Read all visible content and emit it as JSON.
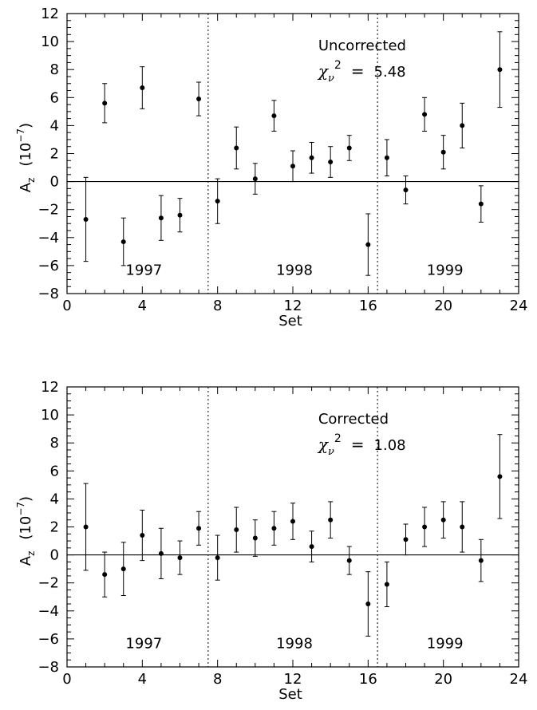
{
  "chart_data": [
    {
      "type": "scatter",
      "title": "",
      "xlabel": "Set",
      "ylabel_main": "A",
      "ylabel_sub": "z",
      "ylabel_unit_pre": "(10",
      "ylabel_unit_exp": "−7",
      "ylabel_unit_post": ")",
      "xlim": [
        0,
        24
      ],
      "ylim": [
        -8,
        12
      ],
      "xticks": [
        0,
        4,
        8,
        12,
        16,
        20,
        24
      ],
      "yticks": [
        -8,
        -6,
        -4,
        -2,
        0,
        2,
        4,
        6,
        8,
        10,
        12
      ],
      "ytick_labels": [
        "−8",
        "−6",
        "−4",
        "−2",
        "0",
        "2",
        "4",
        "6",
        "8",
        "10",
        "12"
      ],
      "vlines": [
        7.5,
        16.5
      ],
      "annotation": "Uncorrected",
      "chi_symbol": "χ",
      "chi_sub": "ν",
      "chi_sup": "2",
      "chi_eq": "=",
      "chi_value": "5.48",
      "year_labels": [
        {
          "text": "1997",
          "x": 4,
          "y": -6.2
        },
        {
          "text": "1998",
          "x": 12,
          "y": -6.2
        },
        {
          "text": "1999",
          "x": 20,
          "y": -6.2
        }
      ],
      "points": [
        {
          "x": 1,
          "y": -2.7,
          "err": 3.0
        },
        {
          "x": 2,
          "y": 5.6,
          "err": 1.4
        },
        {
          "x": 3,
          "y": -4.3,
          "err": 1.7
        },
        {
          "x": 4,
          "y": 6.7,
          "err": 1.5
        },
        {
          "x": 5,
          "y": -2.6,
          "err": 1.6
        },
        {
          "x": 6,
          "y": -2.4,
          "err": 1.2
        },
        {
          "x": 7,
          "y": 5.9,
          "err": 1.2
        },
        {
          "x": 8,
          "y": -1.4,
          "err": 1.6
        },
        {
          "x": 9,
          "y": 2.4,
          "err": 1.5
        },
        {
          "x": 10,
          "y": 0.2,
          "err": 1.1
        },
        {
          "x": 11,
          "y": 4.7,
          "err": 1.1
        },
        {
          "x": 12,
          "y": 1.1,
          "err": 1.1
        },
        {
          "x": 13,
          "y": 1.7,
          "err": 1.1
        },
        {
          "x": 14,
          "y": 1.4,
          "err": 1.1
        },
        {
          "x": 15,
          "y": 2.4,
          "err": 0.9
        },
        {
          "x": 16,
          "y": -4.5,
          "err": 2.2
        },
        {
          "x": 17,
          "y": 1.7,
          "err": 1.3
        },
        {
          "x": 18,
          "y": -0.6,
          "err": 1.0
        },
        {
          "x": 19,
          "y": 4.8,
          "err": 1.2
        },
        {
          "x": 20,
          "y": 2.1,
          "err": 1.2
        },
        {
          "x": 21,
          "y": 4.0,
          "err": 1.6
        },
        {
          "x": 22,
          "y": -1.6,
          "err": 1.3
        },
        {
          "x": 23,
          "y": 8.0,
          "err": 2.7
        }
      ]
    },
    {
      "type": "scatter",
      "title": "",
      "xlabel": "Set",
      "ylabel_main": "A",
      "ylabel_sub": "z",
      "ylabel_unit_pre": "(10",
      "ylabel_unit_exp": "−7",
      "ylabel_unit_post": ")",
      "xlim": [
        0,
        24
      ],
      "ylim": [
        -8,
        12
      ],
      "xticks": [
        0,
        4,
        8,
        12,
        16,
        20,
        24
      ],
      "yticks": [
        -8,
        -6,
        -4,
        -2,
        0,
        2,
        4,
        6,
        8,
        10,
        12
      ],
      "ytick_labels": [
        "−8",
        "−6",
        "−4",
        "−2",
        "0",
        "2",
        "4",
        "6",
        "8",
        "10",
        "12"
      ],
      "vlines": [
        7.5,
        16.5
      ],
      "annotation": "Corrected",
      "chi_symbol": "χ",
      "chi_sub": "ν",
      "chi_sup": "2",
      "chi_eq": "=",
      "chi_value": "1.08",
      "year_labels": [
        {
          "text": "1997",
          "x": 4,
          "y": -6.2
        },
        {
          "text": "1998",
          "x": 12,
          "y": -6.2
        },
        {
          "text": "1999",
          "x": 20,
          "y": -6.2
        }
      ],
      "points": [
        {
          "x": 1,
          "y": 2.0,
          "err": 3.1
        },
        {
          "x": 2,
          "y": -1.4,
          "err": 1.6
        },
        {
          "x": 3,
          "y": -1.0,
          "err": 1.9
        },
        {
          "x": 4,
          "y": 1.4,
          "err": 1.8
        },
        {
          "x": 5,
          "y": 0.1,
          "err": 1.8
        },
        {
          "x": 6,
          "y": -0.2,
          "err": 1.2
        },
        {
          "x": 7,
          "y": 1.9,
          "err": 1.2
        },
        {
          "x": 8,
          "y": -0.2,
          "err": 1.6
        },
        {
          "x": 9,
          "y": 1.8,
          "err": 1.6
        },
        {
          "x": 10,
          "y": 1.2,
          "err": 1.3
        },
        {
          "x": 11,
          "y": 1.9,
          "err": 1.2
        },
        {
          "x": 12,
          "y": 2.4,
          "err": 1.3
        },
        {
          "x": 13,
          "y": 0.6,
          "err": 1.1
        },
        {
          "x": 14,
          "y": 2.5,
          "err": 1.3
        },
        {
          "x": 15,
          "y": -0.4,
          "err": 1.0
        },
        {
          "x": 16,
          "y": -3.5,
          "err": 2.3
        },
        {
          "x": 17,
          "y": -2.1,
          "err": 1.6
        },
        {
          "x": 18,
          "y": 1.1,
          "err": 1.1
        },
        {
          "x": 19,
          "y": 2.0,
          "err": 1.4
        },
        {
          "x": 20,
          "y": 2.5,
          "err": 1.3
        },
        {
          "x": 21,
          "y": 2.0,
          "err": 1.8
        },
        {
          "x": 22,
          "y": -0.4,
          "err": 1.5
        },
        {
          "x": 23,
          "y": 5.6,
          "err": 3.0
        }
      ]
    }
  ]
}
